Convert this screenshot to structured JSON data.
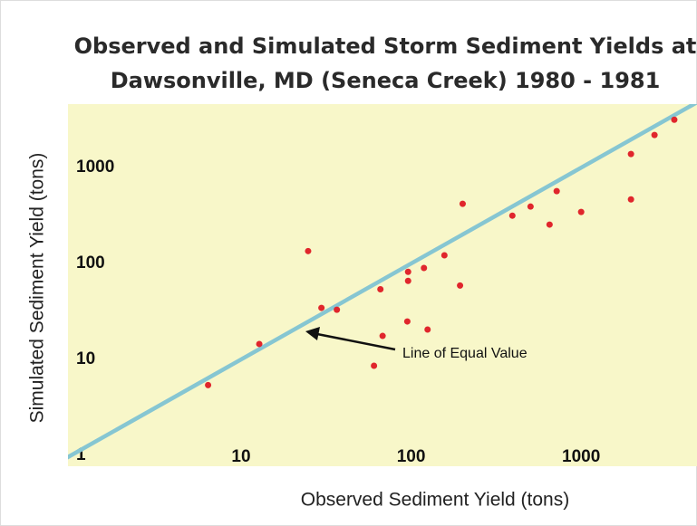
{
  "chart_data": {
    "type": "scatter",
    "title": [
      "Observed and Simulated Storm Sediment Yields at",
      "Dawsonville, MD (Seneca Creek) 1980 - 1981"
    ],
    "x_label": "Observed Sediment Yield (tons)",
    "y_label": "Simulated Sediment Yield (tons)",
    "annotation": "Line of Equal Value",
    "x_log": true,
    "y_log": true,
    "xlim": [
      0.96,
      4800
    ],
    "ylim": [
      0.77,
      4600
    ],
    "xticks": [
      10,
      100,
      1000
    ],
    "yticks": [
      1,
      10,
      100,
      1000
    ],
    "point_color": "#e0262c",
    "line_color": "#86c6d2",
    "background": "#f8f7c9",
    "x": [
      6.4,
      12.8,
      24.8,
      29.7,
      36.6,
      66,
      68,
      60.5,
      95,
      96,
      96,
      119,
      125,
      157,
      194,
      201,
      394,
      504,
      652,
      718,
      1000,
      1963,
      1963,
      2700,
      3530
    ],
    "values": [
      5.4,
      14.5,
      135,
      34.5,
      33,
      54,
      17.6,
      8.6,
      24.9,
      82,
      66,
      90,
      20.5,
      122,
      59,
      420,
      316,
      393,
      255,
      569,
      345,
      467,
      1387,
      2190,
      3160
    ]
  }
}
